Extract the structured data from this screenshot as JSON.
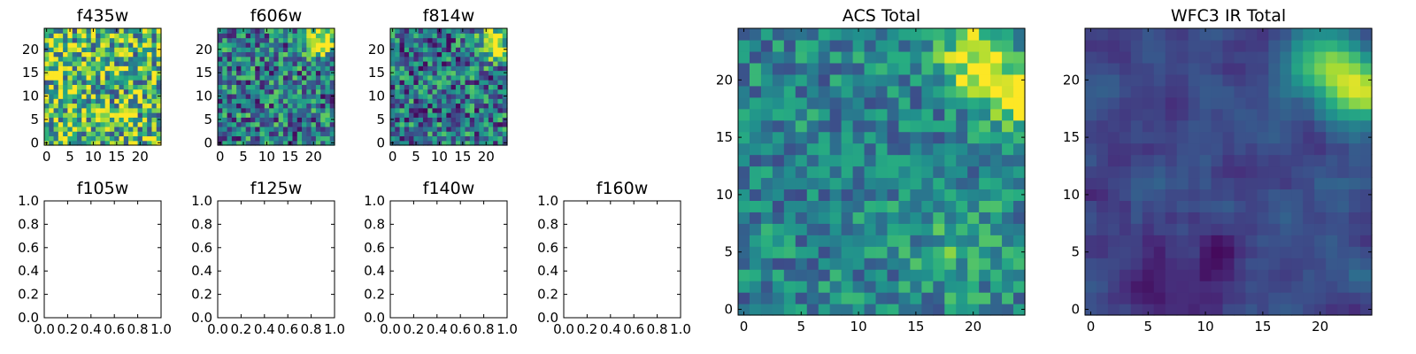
{
  "colormap": "viridis",
  "colors": {
    "viridis_stops": [
      "#440154",
      "#472c7a",
      "#3b518b",
      "#2c718e",
      "#21908d",
      "#27ad81",
      "#5cc863",
      "#aadc32",
      "#fde725"
    ]
  },
  "chart_data": [
    {
      "type": "heatmap",
      "title": "f435w",
      "image_size": 25,
      "xlim": [
        -0.5,
        24.5
      ],
      "ylim": [
        -0.5,
        24.5
      ],
      "xticks": [
        0,
        5,
        10,
        15,
        20
      ],
      "yticks": [
        0,
        5,
        10,
        15,
        20
      ],
      "value_range": [
        0,
        1
      ],
      "pattern": "noise",
      "noise_level": 0.9,
      "base_level": 0.68,
      "blobs": []
    },
    {
      "type": "heatmap",
      "title": "f606w",
      "image_size": 25,
      "xlim": [
        -0.5,
        24.5
      ],
      "ylim": [
        -0.5,
        24.5
      ],
      "xticks": [
        0,
        5,
        10,
        15,
        20
      ],
      "yticks": [
        0,
        5,
        10,
        15,
        20
      ],
      "value_range": [
        0,
        1
      ],
      "pattern": "noise",
      "noise_level": 0.75,
      "base_level": 0.4,
      "blobs": [
        {
          "x": 21,
          "y": 22,
          "sigma": 2.6,
          "amp": 0.6
        }
      ]
    },
    {
      "type": "heatmap",
      "title": "f814w",
      "image_size": 25,
      "xlim": [
        -0.5,
        24.5
      ],
      "ylim": [
        -0.5,
        24.5
      ],
      "xticks": [
        0,
        5,
        10,
        15,
        20
      ],
      "yticks": [
        0,
        5,
        10,
        15,
        20
      ],
      "value_range": [
        0,
        1
      ],
      "pattern": "noise",
      "noise_level": 0.75,
      "base_level": 0.38,
      "blobs": [
        {
          "x": 22,
          "y": 21,
          "sigma": 2.3,
          "amp": 0.65
        }
      ]
    },
    {
      "type": "heatmap",
      "title": "f105w",
      "empty": true,
      "xlim": [
        0,
        1
      ],
      "ylim": [
        0,
        1
      ],
      "xticks": [
        0.0,
        0.2,
        0.4,
        0.6,
        0.8,
        1.0
      ],
      "yticks": [
        0.0,
        0.2,
        0.4,
        0.6,
        0.8,
        1.0
      ],
      "xtick_labels": [
        "0.0",
        "0.2",
        "0.4",
        "0.6",
        "0.8",
        "1.0"
      ],
      "ytick_labels": [
        "0.0",
        "0.2",
        "0.4",
        "0.6",
        "0.8",
        "1.0"
      ]
    },
    {
      "type": "heatmap",
      "title": "f125w",
      "empty": true,
      "xlim": [
        0,
        1
      ],
      "ylim": [
        0,
        1
      ],
      "xticks": [
        0.0,
        0.2,
        0.4,
        0.6,
        0.8,
        1.0
      ],
      "yticks": [
        0.0,
        0.2,
        0.4,
        0.6,
        0.8,
        1.0
      ],
      "xtick_labels": [
        "0.0",
        "0.2",
        "0.4",
        "0.6",
        "0.8",
        "1.0"
      ],
      "ytick_labels": [
        "0.0",
        "0.2",
        "0.4",
        "0.6",
        "0.8",
        "1.0"
      ]
    },
    {
      "type": "heatmap",
      "title": "f140w",
      "empty": true,
      "xlim": [
        0,
        1
      ],
      "ylim": [
        0,
        1
      ],
      "xticks": [
        0.0,
        0.2,
        0.4,
        0.6,
        0.8,
        1.0
      ],
      "yticks": [
        0.0,
        0.2,
        0.4,
        0.6,
        0.8,
        1.0
      ],
      "xtick_labels": [
        "0.0",
        "0.2",
        "0.4",
        "0.6",
        "0.8",
        "1.0"
      ],
      "ytick_labels": [
        "0.0",
        "0.2",
        "0.4",
        "0.6",
        "0.8",
        "1.0"
      ]
    },
    {
      "type": "heatmap",
      "title": "f160w",
      "empty": true,
      "xlim": [
        0,
        1
      ],
      "ylim": [
        0,
        1
      ],
      "xticks": [
        0.0,
        0.2,
        0.4,
        0.6,
        0.8,
        1.0
      ],
      "yticks": [
        0.0,
        0.2,
        0.4,
        0.6,
        0.8,
        1.0
      ],
      "xtick_labels": [
        "0.0",
        "0.2",
        "0.4",
        "0.6",
        "0.8",
        "1.0"
      ],
      "ytick_labels": [
        "0.0",
        "0.2",
        "0.4",
        "0.6",
        "0.8",
        "1.0"
      ]
    },
    {
      "type": "heatmap",
      "title": "ACS Total",
      "image_size": 25,
      "xlim": [
        -0.5,
        24.5
      ],
      "ylim": [
        -0.5,
        24.5
      ],
      "xticks": [
        0,
        5,
        10,
        15,
        20
      ],
      "yticks": [
        0,
        5,
        10,
        15,
        20
      ],
      "value_range": [
        0,
        1
      ],
      "pattern": "noise",
      "noise_level": 0.45,
      "base_level": 0.45,
      "blobs": [
        {
          "x": 20,
          "y": 22,
          "sigma": 2.2,
          "amp": 0.5
        },
        {
          "x": 23.5,
          "y": 18.5,
          "sigma": 2.0,
          "amp": 0.5
        },
        {
          "x": 19,
          "y": 6,
          "sigma": 3.0,
          "amp": 0.18
        }
      ]
    },
    {
      "type": "heatmap",
      "title": "WFC3 IR Total",
      "image_size": 25,
      "xlim": [
        -0.5,
        24.5
      ],
      "ylim": [
        -0.5,
        24.5
      ],
      "xticks": [
        0,
        5,
        10,
        15,
        20
      ],
      "yticks": [
        0,
        5,
        10,
        15,
        20
      ],
      "value_range": [
        0,
        1
      ],
      "pattern": "smooth",
      "noise_level": 0.2,
      "base_level": 0.22,
      "blobs": [
        {
          "x": 20.5,
          "y": 21.5,
          "sigma": 2.4,
          "amp": 0.55
        },
        {
          "x": 23.8,
          "y": 19,
          "sigma": 2.0,
          "amp": 0.6
        },
        {
          "x": 5,
          "y": 2,
          "sigma": 2.5,
          "amp": -0.15
        },
        {
          "x": 11,
          "y": 4.5,
          "sigma": 1.5,
          "amp": -0.15
        }
      ]
    }
  ]
}
